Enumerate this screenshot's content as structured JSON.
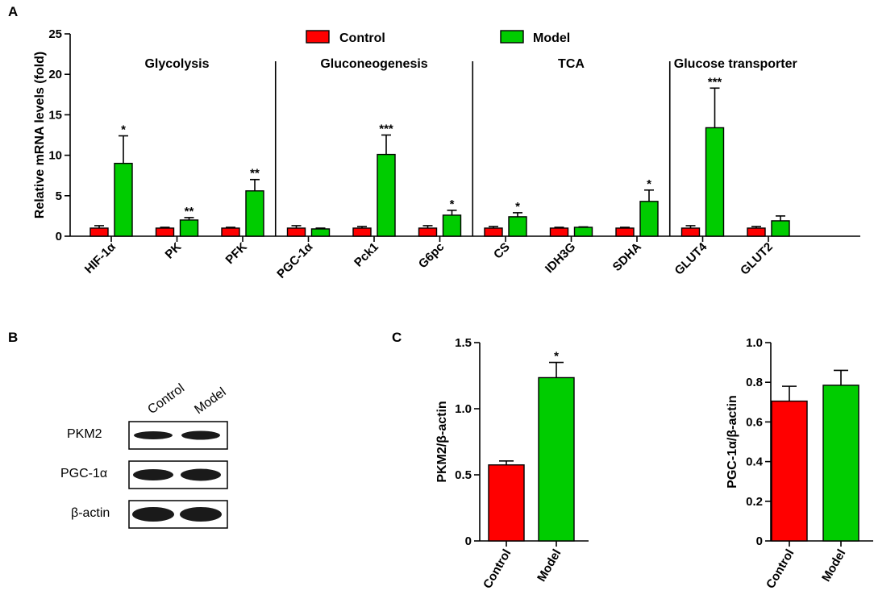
{
  "panels": {
    "A": "A",
    "B": "B",
    "C": "C"
  },
  "colors": {
    "control": "#ff0000",
    "model": "#00cc00",
    "axis": "#000000",
    "blot": "#1a1a1a"
  },
  "chart_data": [
    {
      "id": "A",
      "type": "bar",
      "ylabel": "Relative mRNA levels (fold)",
      "ylim": [
        0,
        25
      ],
      "yticks": [
        "0",
        "5",
        "10",
        "15",
        "20",
        "25"
      ],
      "legend": [
        "Control",
        "Model"
      ],
      "legend_position": "top",
      "groups": [
        {
          "label": "Glycolysis",
          "categories": [
            0,
            1,
            2
          ]
        },
        {
          "label": "Gluconeogenesis",
          "categories": [
            3,
            4,
            5
          ]
        },
        {
          "label": "TCA",
          "categories": [
            6,
            7,
            8
          ]
        },
        {
          "label": "Glucose transporter",
          "categories": [
            9,
            10
          ]
        }
      ],
      "categories": [
        "HIF-1α",
        "PK",
        "PFK",
        "PGC-1α",
        "Pck1",
        "G6pc",
        "CS",
        "IDH3G",
        "SDHA",
        "GLUT4",
        "GLUT2"
      ],
      "series": [
        {
          "name": "Control",
          "values": [
            1.0,
            1.0,
            1.0,
            1.0,
            1.0,
            1.0,
            1.0,
            1.0,
            1.0,
            1.0,
            1.0
          ],
          "errors": [
            0.3,
            0.1,
            0.1,
            0.3,
            0.2,
            0.3,
            0.2,
            0.1,
            0.1,
            0.3,
            0.2
          ]
        },
        {
          "name": "Model",
          "values": [
            9.0,
            2.0,
            5.6,
            0.9,
            10.1,
            2.6,
            2.4,
            1.1,
            4.3,
            13.4,
            1.9
          ],
          "errors": [
            3.4,
            0.3,
            1.4,
            0.1,
            2.4,
            0.6,
            0.5,
            0.05,
            1.4,
            4.9,
            0.6
          ]
        }
      ],
      "significance": [
        "*",
        "**",
        "**",
        "",
        "***",
        "*",
        "*",
        "",
        "*",
        "***",
        ""
      ]
    },
    {
      "id": "C1",
      "type": "bar",
      "ylabel": "PKM2/β-actin",
      "ylim": [
        0,
        1.5
      ],
      "yticks": [
        "0",
        "0.5",
        "1.0",
        "1.5"
      ],
      "categories": [
        "Control",
        "Model"
      ],
      "values": [
        0.575,
        1.235
      ],
      "errors": [
        0.03,
        0.115
      ],
      "significance": [
        "",
        "*"
      ]
    },
    {
      "id": "C2",
      "type": "bar",
      "ylabel": "PGC-1α/β-actin",
      "ylim": [
        0,
        1.0
      ],
      "yticks": [
        "0",
        "0.2",
        "0.4",
        "0.6",
        "0.8",
        "1.0"
      ],
      "categories": [
        "Control",
        "Model"
      ],
      "values": [
        0.705,
        0.785
      ],
      "errors": [
        0.075,
        0.075
      ],
      "significance": [
        "",
        ""
      ]
    }
  ],
  "blot": {
    "lanes": [
      "Control",
      "Model"
    ],
    "proteins": [
      "PKM2",
      "PGC-1α",
      "β-actin"
    ]
  }
}
